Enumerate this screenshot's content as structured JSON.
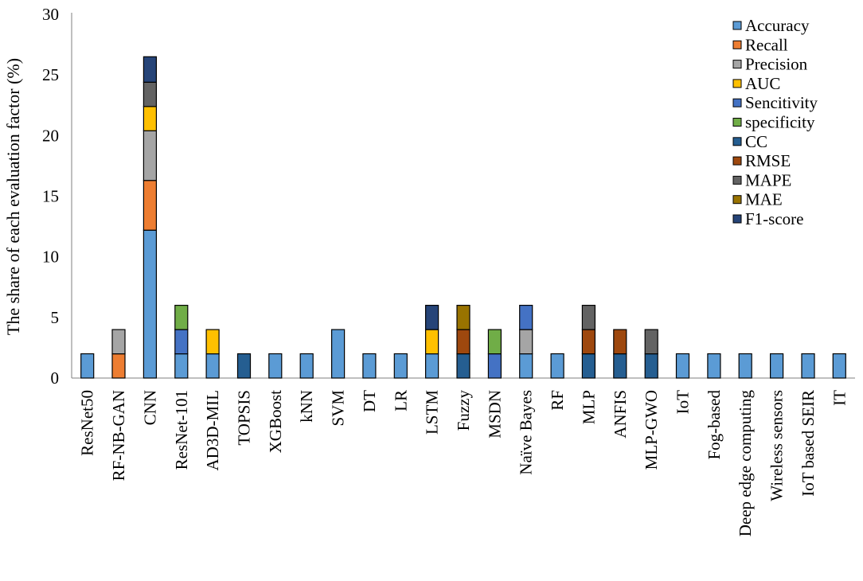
{
  "chart_data": {
    "type": "bar",
    "stacked": true,
    "title": "",
    "xlabel": "",
    "ylabel": "The share of each evaluation factor (%)",
    "ylim": [
      0,
      30
    ],
    "yticks": [
      "0",
      "5",
      "10",
      "15",
      "20",
      "25",
      "30"
    ],
    "grid": false,
    "legend_position": "top-right",
    "categories": [
      "ResNet50",
      "RF-NB-GAN",
      "CNN",
      "ResNet-101",
      "AD3D-MIL",
      "TOPSIS",
      "XGBoost",
      "kNN",
      "SVM",
      "DT",
      "LR",
      "LSTM",
      "Fuzzy",
      "MSDN",
      "Naïve Bayes",
      "RF",
      "MLP",
      "ANFIS",
      "MLP-GWO",
      "IoT",
      "Fog-based",
      "Deep edge computing",
      "Wireless sensors",
      "IoT based SEIR",
      "IT"
    ],
    "series": [
      {
        "name": "Accuracy",
        "color": "#5B9BD5",
        "values": [
          2,
          0,
          12.2,
          2,
          2,
          0,
          2,
          2,
          4,
          2,
          2,
          2,
          0,
          0,
          2,
          2,
          0,
          0,
          0,
          2,
          2,
          2,
          2,
          2,
          2
        ]
      },
      {
        "name": "Recall",
        "color": "#ED7D31",
        "values": [
          0,
          2,
          4.1,
          0,
          0,
          0,
          0,
          0,
          0,
          0,
          0,
          0,
          0,
          0,
          0,
          0,
          0,
          0,
          0,
          0,
          0,
          0,
          0,
          0,
          0
        ]
      },
      {
        "name": "Precision",
        "color": "#A5A5A5",
        "values": [
          0,
          2,
          4.1,
          0,
          0,
          0,
          0,
          0,
          0,
          0,
          0,
          0,
          0,
          0,
          2,
          0,
          0,
          0,
          0,
          0,
          0,
          0,
          0,
          0,
          0
        ]
      },
      {
        "name": "AUC",
        "color": "#FFC000",
        "values": [
          0,
          0,
          2,
          0,
          2,
          0,
          0,
          0,
          0,
          0,
          0,
          2,
          0,
          0,
          0,
          0,
          0,
          0,
          0,
          0,
          0,
          0,
          0,
          0,
          0
        ]
      },
      {
        "name": "Sencitivity",
        "color": "#4472C4",
        "values": [
          0,
          0,
          0,
          2,
          0,
          0,
          0,
          0,
          0,
          0,
          0,
          0,
          0,
          2,
          2,
          0,
          0,
          0,
          0,
          0,
          0,
          0,
          0,
          0,
          0
        ]
      },
      {
        "name": "specificity",
        "color": "#70AD47",
        "values": [
          0,
          0,
          0,
          2,
          0,
          0,
          0,
          0,
          0,
          0,
          0,
          0,
          0,
          2,
          0,
          0,
          0,
          0,
          0,
          0,
          0,
          0,
          0,
          0,
          0
        ]
      },
      {
        "name": "CC",
        "color": "#255E91",
        "values": [
          0,
          0,
          0,
          0,
          0,
          2,
          0,
          0,
          0,
          0,
          0,
          0,
          2,
          0,
          0,
          0,
          2,
          2,
          2,
          0,
          0,
          0,
          0,
          0,
          0
        ]
      },
      {
        "name": "RMSE",
        "color": "#9E480E",
        "values": [
          0,
          0,
          0,
          0,
          0,
          0,
          0,
          0,
          0,
          0,
          0,
          0,
          2,
          0,
          0,
          0,
          2,
          2,
          0,
          0,
          0,
          0,
          0,
          0,
          0
        ]
      },
      {
        "name": "MAPE",
        "color": "#636363",
        "values": [
          0,
          0,
          2,
          0,
          0,
          0,
          0,
          0,
          0,
          0,
          0,
          0,
          0,
          0,
          0,
          0,
          2,
          0,
          2,
          0,
          0,
          0,
          0,
          0,
          0
        ]
      },
      {
        "name": "MAE",
        "color": "#997300",
        "values": [
          0,
          0,
          0,
          0,
          0,
          0,
          0,
          0,
          0,
          0,
          0,
          0,
          2,
          0,
          0,
          0,
          0,
          0,
          0,
          0,
          0,
          0,
          0,
          0,
          0
        ]
      },
      {
        "name": "F1-score",
        "color": "#264478",
        "values": [
          0,
          0,
          2.1,
          0,
          0,
          0,
          0,
          0,
          0,
          0,
          0,
          2,
          0,
          0,
          0,
          0,
          0,
          0,
          0,
          0,
          0,
          0,
          0,
          0,
          0
        ]
      }
    ]
  }
}
